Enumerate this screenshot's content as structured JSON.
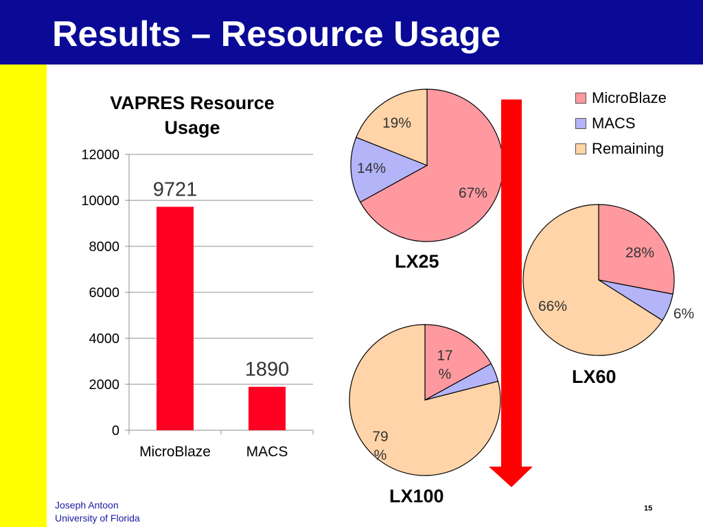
{
  "slide": {
    "title": "Results – Resource Usage",
    "author": "Joseph Antoon",
    "affiliation": "University of Florida",
    "page": "15"
  },
  "colors": {
    "title_bg": "#0a0a96",
    "side_bar": "#ffff00",
    "bar": "#ff0022",
    "arrow": "#ff0000",
    "microblaze": "#ff99a0",
    "macs": "#b4b4f8",
    "remaining": "#ffd4a8"
  },
  "legend": [
    "MicroBlaze",
    "MACS",
    "Remaining"
  ],
  "chart_data": [
    {
      "type": "bar",
      "title": "VAPRES Resource Usage",
      "categories": [
        "MicroBlaze",
        "MACS"
      ],
      "values": [
        9721,
        1890
      ],
      "data_labels": [
        "9721",
        "1890"
      ],
      "ylim": [
        0,
        12000
      ],
      "yticks": [
        "0",
        "2000",
        "4000",
        "6000",
        "8000",
        "10000",
        "12000"
      ],
      "grid": true
    },
    {
      "type": "pie",
      "title": "LX25",
      "categories": [
        "MicroBlaze",
        "MACS",
        "Remaining"
      ],
      "values": [
        67,
        14,
        19
      ],
      "labels": [
        "67%",
        "14%",
        "19%"
      ]
    },
    {
      "type": "pie",
      "title": "LX60",
      "categories": [
        "MicroBlaze",
        "MACS",
        "Remaining"
      ],
      "values": [
        28,
        6,
        66
      ],
      "labels": [
        "28%",
        "6%",
        "66%"
      ]
    },
    {
      "type": "pie",
      "title": "LX100",
      "categories": [
        "MicroBlaze",
        "MACS",
        "Remaining"
      ],
      "values": [
        17,
        4,
        79
      ],
      "labels": [
        "17\n%",
        "",
        "79\n%"
      ]
    }
  ]
}
